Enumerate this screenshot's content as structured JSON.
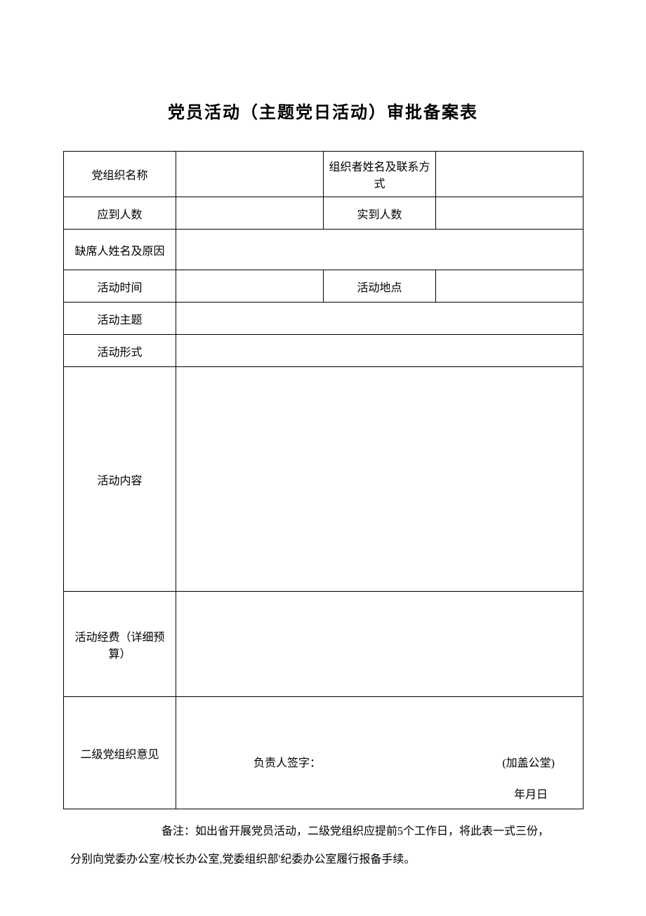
{
  "title": "党员活动（主题党日活动）审批备案表",
  "table": {
    "org_name_label": "党组织名称",
    "org_name_value": "",
    "organizer_label": "组织者姓名及联系方式",
    "organizer_value": "",
    "expected_count_label": "应到人数",
    "expected_count_value": "",
    "actual_count_label": "实到人数",
    "actual_count_value": "",
    "absent_label": "缺席人姓名及原因",
    "absent_value": "",
    "activity_time_label": "活动时间",
    "activity_time_value": "",
    "activity_place_label": "活动地点",
    "activity_place_value": "",
    "activity_theme_label": "活动主题",
    "activity_theme_value": "",
    "activity_form_label": "活动形式",
    "activity_form_value": "",
    "activity_content_label": "活动内容",
    "activity_content_value": "",
    "budget_label": "活动经费（详细预算）",
    "budget_value": "",
    "opinion_label": "二级党组织意见",
    "opinion_sign": "负责人签字：",
    "opinion_seal": "(加盖公堂)",
    "opinion_date": "年月日"
  },
  "notes": {
    "line1": "备注：如出省开展党员活动，二级党组织应提前5个工作日，将此表一式三份，",
    "line2": "分别向党委办公室/校长办公室,党委组织部'纪委办公室履行报备手续。"
  },
  "style": {
    "font_size_title": 24,
    "font_size_body": 16,
    "border_color": "#000000",
    "background_color": "#ffffff",
    "text_color": "#000000"
  }
}
